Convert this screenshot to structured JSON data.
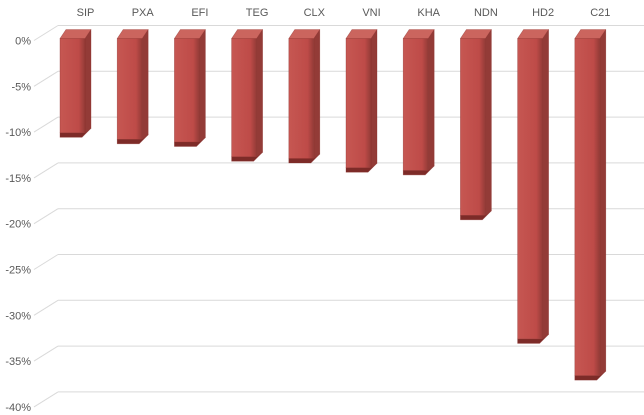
{
  "chart_data": {
    "type": "bar",
    "style": "3d-column",
    "title": "",
    "xlabel": "",
    "ylabel": "",
    "categories": [
      "SIP",
      "PXA",
      "EFI",
      "TEG",
      "CLX",
      "VNI",
      "KHA",
      "NDN",
      "HD2",
      "C21"
    ],
    "values": [
      -10.3,
      -11.0,
      -11.3,
      -12.9,
      -13.1,
      -14.1,
      -14.4,
      -19.3,
      -32.8,
      -36.8
    ],
    "value_unit": "%",
    "y_ticks": [
      "0%",
      "-5%",
      "-10%",
      "-15%",
      "-20%",
      "-25%",
      "-30%",
      "-35%",
      "-40%"
    ],
    "y_tick_values": [
      0,
      -5,
      -10,
      -15,
      -20,
      -25,
      -30,
      -35,
      -40
    ],
    "ylim": [
      -40,
      0
    ],
    "grid": true,
    "legend": "none",
    "colors": {
      "bar_front": "#BE4B48",
      "bar_front_light": "#C65752",
      "bar_top": "#CB655E",
      "bar_side": "#933B37",
      "bar_bottom_edge": "#7D2B28",
      "bar_edge_line": "#8B2F2C",
      "gridline": "#D9D9D9",
      "label_text": "#595959",
      "background": "#FFFFFF"
    }
  }
}
